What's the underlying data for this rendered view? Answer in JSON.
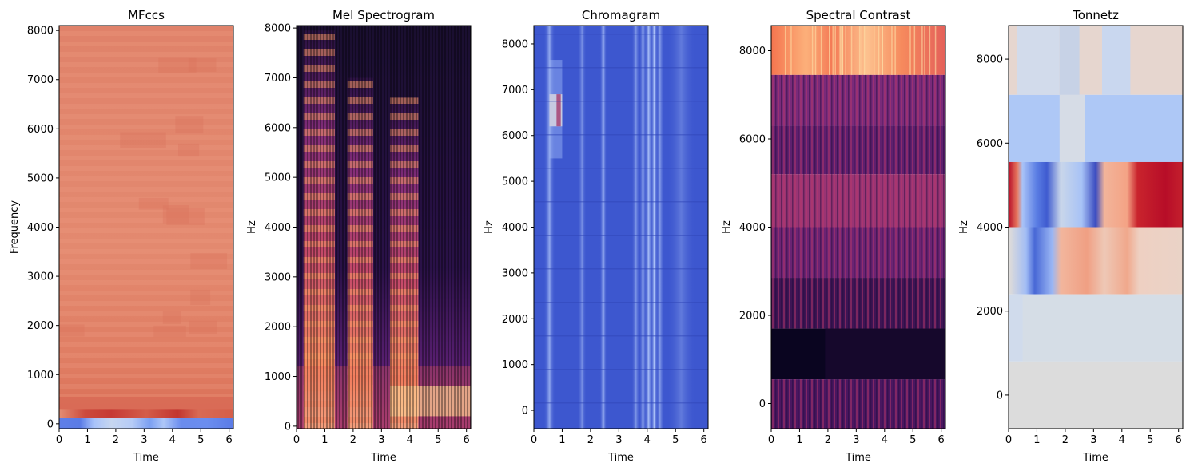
{
  "figure": {
    "background": "#ffffff",
    "x_ticks": [
      "0",
      "1",
      "2",
      "3",
      "4",
      "5",
      "6"
    ],
    "x_tick_values": [
      0,
      1,
      2,
      3,
      4,
      5,
      6
    ]
  },
  "chart_data": [
    {
      "type": "heatmap",
      "title": "MFccs",
      "xlabel": "Time",
      "ylabel": "Frequency",
      "xlim": [
        0,
        6.15
      ],
      "ylim": [
        -100,
        8100
      ],
      "y_ticks": [
        0,
        1000,
        2000,
        3000,
        4000,
        5000,
        6000,
        7000,
        8000
      ],
      "colormap": "coolwarm",
      "colors": {
        "base": "#e2856b",
        "low_band": "#d45a45",
        "bottom_row": "#6f8ff0"
      }
    },
    {
      "type": "heatmap",
      "title": "Mel Spectrogram",
      "xlabel": "Time",
      "ylabel": "Hz",
      "xlim": [
        0,
        6.15
      ],
      "ylim": [
        -50,
        8050
      ],
      "y_ticks": [
        0,
        1000,
        2000,
        3000,
        4000,
        5000,
        6000,
        7000,
        8000
      ],
      "colormap": "magma",
      "colors": {
        "base": "#1a0f2e",
        "mid": "#8c2d80",
        "high": "#f4a572"
      }
    },
    {
      "type": "heatmap",
      "title": "Chromagram",
      "xlabel": "Time",
      "ylabel": "Hz",
      "xlim": [
        0,
        6.15
      ],
      "ylim": [
        -400,
        8400
      ],
      "y_ticks": [
        0,
        1000,
        2000,
        3000,
        4000,
        5000,
        6000,
        7000,
        8000
      ],
      "colormap": "coolwarm",
      "colors": {
        "base": "#3d57cf",
        "bright": "#a9c6fb",
        "peak": "#b40426"
      }
    },
    {
      "type": "heatmap",
      "title": "Spectral Contrast",
      "xlabel": "Time",
      "ylabel": "Hz",
      "xlim": [
        0,
        6.15
      ],
      "ylim": [
        -570,
        8570
      ],
      "y_ticks": [
        0,
        2000,
        4000,
        6000,
        8000
      ],
      "colormap": "magma",
      "colors": {
        "dark": "#0a0520",
        "mid": "#6a2070",
        "top": "#f98a62"
      }
    },
    {
      "type": "heatmap",
      "title": "Tonnetz",
      "xlabel": "Time",
      "ylabel": "Hz",
      "xlim": [
        0,
        6.15
      ],
      "ylim": [
        -800,
        8800
      ],
      "y_ticks": [
        0,
        2000,
        4000,
        6000,
        8000
      ],
      "colormap": "coolwarm",
      "colors": {
        "neutral": "#d7dce3",
        "blue": "#aec8f6",
        "red": "#b70d28"
      }
    }
  ]
}
